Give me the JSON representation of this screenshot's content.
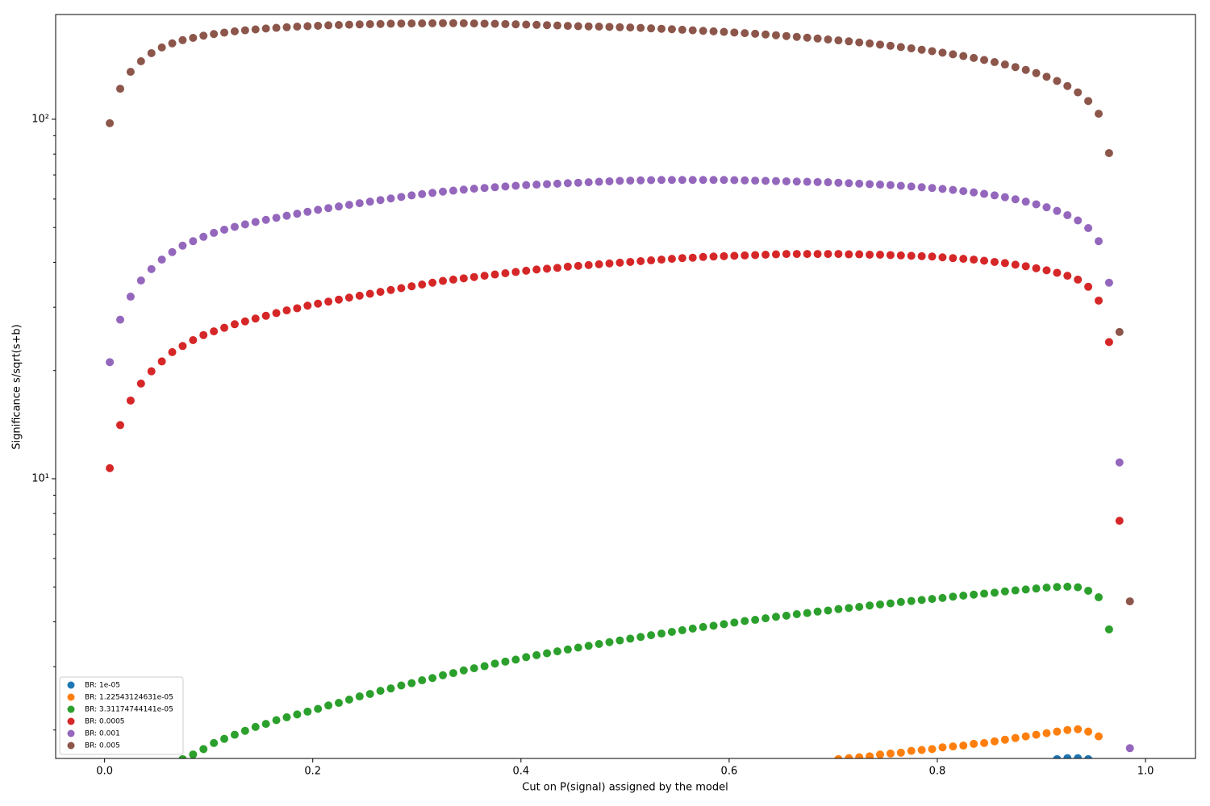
{
  "chart_data": {
    "type": "scatter",
    "xlabel": "Cut on P(signal) assigned by the model",
    "ylabel": "Significance s/sqrt(s+b)",
    "log_y": true,
    "legend_position": "lower left",
    "xlim": [
      -0.047,
      1.048
    ],
    "ylim": [
      1.667,
      195.6
    ],
    "xticks": [
      {
        "value": 0,
        "label": "0.0"
      },
      0.2,
      0.4,
      0.6,
      0.8,
      {
        "value": 1,
        "label": "1.0"
      }
    ],
    "yticks": [
      {
        "value": 10,
        "label": "10¹"
      },
      {
        "value": 100,
        "label": "10²"
      }
    ],
    "yminorticks": [
      2,
      3,
      4,
      5,
      6,
      7,
      8,
      9,
      20,
      30,
      40,
      50,
      60,
      70,
      80,
      90
    ],
    "x": [
      0.005,
      0.015,
      0.025,
      0.035,
      0.045,
      0.055,
      0.065,
      0.075,
      0.085,
      0.095,
      0.105,
      0.115,
      0.125,
      0.135,
      0.145,
      0.155,
      0.165,
      0.175,
      0.185,
      0.195,
      0.205,
      0.215,
      0.225,
      0.235,
      0.245,
      0.255,
      0.265,
      0.275,
      0.285,
      0.295,
      0.305,
      0.315,
      0.325,
      0.335,
      0.345,
      0.355,
      0.365,
      0.375,
      0.385,
      0.395,
      0.405,
      0.415,
      0.425,
      0.435,
      0.445,
      0.455,
      0.465,
      0.475,
      0.485,
      0.495,
      0.505,
      0.515,
      0.525,
      0.535,
      0.545,
      0.555,
      0.565,
      0.575,
      0.585,
      0.595,
      0.605,
      0.615,
      0.625,
      0.635,
      0.645,
      0.655,
      0.665,
      0.675,
      0.685,
      0.695,
      0.705,
      0.715,
      0.725,
      0.735,
      0.745,
      0.755,
      0.765,
      0.775,
      0.785,
      0.795,
      0.805,
      0.815,
      0.825,
      0.835,
      0.845,
      0.855,
      0.865,
      0.875,
      0.885,
      0.895,
      0.905,
      0.915,
      0.925,
      0.935,
      0.945,
      0.955,
      0.965,
      0.975,
      0.985
    ],
    "series": [
      {
        "name": "BR: 1e-05",
        "color": "#1f77b4",
        "values": [
          null,
          null,
          null,
          null,
          null,
          null,
          null,
          null,
          null,
          null,
          null,
          null,
          null,
          null,
          null,
          null,
          null,
          null,
          null,
          null,
          null,
          null,
          null,
          null,
          null,
          null,
          null,
          null,
          null,
          null,
          null,
          null,
          null,
          null,
          null,
          null,
          null,
          null,
          null,
          null,
          null,
          null,
          null,
          null,
          null,
          null,
          null,
          null,
          null,
          null,
          null,
          null,
          null,
          null,
          null,
          null,
          null,
          null,
          null,
          null,
          null,
          null,
          null,
          null,
          null,
          null,
          null,
          null,
          null,
          null,
          null,
          null,
          null,
          null,
          null,
          null,
          null,
          null,
          null,
          null,
          null,
          null,
          null,
          null,
          null,
          null,
          null,
          null,
          null,
          null,
          null,
          1.66,
          1.67,
          1.67,
          1.66,
          null,
          null,
          null,
          null
        ]
      },
      {
        "name": "BR: 1.22543124631e-05",
        "color": "#ff7f0e",
        "values": [
          null,
          null,
          null,
          null,
          null,
          null,
          null,
          null,
          null,
          null,
          null,
          null,
          null,
          null,
          null,
          null,
          null,
          null,
          null,
          null,
          null,
          null,
          null,
          null,
          null,
          null,
          null,
          null,
          null,
          null,
          null,
          null,
          null,
          null,
          null,
          null,
          null,
          null,
          null,
          null,
          null,
          null,
          null,
          null,
          null,
          null,
          null,
          null,
          null,
          null,
          null,
          null,
          null,
          null,
          null,
          null,
          null,
          null,
          null,
          null,
          null,
          null,
          null,
          null,
          null,
          null,
          null,
          null,
          null,
          null,
          1.66,
          1.67,
          1.68,
          1.69,
          1.71,
          1.72,
          1.73,
          1.75,
          1.76,
          1.77,
          1.79,
          1.8,
          1.81,
          1.83,
          1.84,
          1.86,
          1.88,
          1.9,
          1.92,
          1.94,
          1.96,
          1.98,
          2.0,
          2.01,
          1.98,
          1.92,
          null,
          null,
          null
        ]
      },
      {
        "name": "BR: 3.31174744141e-05",
        "color": "#2ca02c",
        "values": [
          null,
          null,
          null,
          null,
          null,
          null,
          null,
          1.66,
          1.71,
          1.77,
          1.84,
          1.89,
          1.94,
          1.99,
          2.04,
          2.08,
          2.13,
          2.17,
          2.21,
          2.25,
          2.29,
          2.34,
          2.38,
          2.43,
          2.48,
          2.52,
          2.57,
          2.61,
          2.66,
          2.7,
          2.75,
          2.79,
          2.84,
          2.88,
          2.93,
          2.97,
          3.01,
          3.06,
          3.1,
          3.14,
          3.19,
          3.23,
          3.27,
          3.31,
          3.35,
          3.39,
          3.43,
          3.47,
          3.51,
          3.55,
          3.59,
          3.63,
          3.67,
          3.71,
          3.75,
          3.79,
          3.83,
          3.87,
          3.9,
          3.94,
          3.98,
          4.02,
          4.05,
          4.09,
          4.13,
          4.16,
          4.2,
          4.23,
          4.27,
          4.3,
          4.34,
          4.37,
          4.4,
          4.44,
          4.47,
          4.5,
          4.54,
          4.57,
          4.6,
          4.63,
          4.66,
          4.7,
          4.73,
          4.76,
          4.79,
          4.82,
          4.86,
          4.89,
          4.92,
          4.95,
          4.98,
          5.0,
          5.01,
          4.99,
          4.88,
          4.68,
          3.81,
          null,
          null
        ]
      },
      {
        "name": "BR: 0.0005",
        "color": "#d62728",
        "values": [
          10.7,
          14.1,
          16.5,
          18.4,
          19.9,
          21.2,
          22.5,
          23.4,
          24.3,
          25.1,
          25.7,
          26.3,
          26.9,
          27.4,
          27.9,
          28.4,
          28.9,
          29.4,
          29.8,
          30.3,
          30.7,
          31.1,
          31.5,
          31.9,
          32.3,
          32.7,
          33.1,
          33.5,
          33.9,
          34.3,
          34.7,
          35.1,
          35.5,
          35.8,
          36.1,
          36.4,
          36.7,
          37,
          37.3,
          37.6,
          37.9,
          38.2,
          38.4,
          38.6,
          38.9,
          39.1,
          39.3,
          39.5,
          39.7,
          39.9,
          40.1,
          40.3,
          40.5,
          40.7,
          40.9,
          41.1,
          41.2,
          41.4,
          41.5,
          41.6,
          41.7,
          41.8,
          41.9,
          42,
          42.1,
          42.2,
          42.2,
          42.2,
          42.2,
          42.2,
          42.2,
          42.1,
          42.1,
          42,
          42,
          41.9,
          41.8,
          41.7,
          41.6,
          41.5,
          41.3,
          41.1,
          40.9,
          40.7,
          40.4,
          40.1,
          39.8,
          39.4,
          39,
          38.5,
          38,
          37.4,
          36.7,
          35.8,
          34.2,
          31.3,
          24,
          7.64,
          null
        ]
      },
      {
        "name": "BR: 0.001",
        "color": "#9467bd",
        "values": [
          21.1,
          27.7,
          32.1,
          35.6,
          38.3,
          40.7,
          42.7,
          44.5,
          45.8,
          47.1,
          48.3,
          49.3,
          50.2,
          51,
          51.8,
          52.5,
          53.2,
          53.9,
          54.6,
          55.3,
          56,
          56.6,
          57.2,
          57.8,
          58.4,
          59,
          59.6,
          60.2,
          60.8,
          61.4,
          61.9,
          62.4,
          62.9,
          63.3,
          63.7,
          64.1,
          64.4,
          64.7,
          65,
          65.3,
          65.6,
          65.8,
          66,
          66.2,
          66.4,
          66.6,
          66.8,
          67,
          67.2,
          67.4,
          67.5,
          67.6,
          67.7,
          67.8,
          67.8,
          67.8,
          67.8,
          67.8,
          67.8,
          67.8,
          67.7,
          67.6,
          67.5,
          67.4,
          67.3,
          67.2,
          67.1,
          67,
          66.9,
          66.8,
          66.6,
          66.4,
          66.2,
          66,
          65.8,
          65.6,
          65.3,
          65,
          64.7,
          64.4,
          64,
          63.6,
          63.1,
          62.6,
          62,
          61.4,
          60.7,
          59.9,
          59,
          58,
          56.9,
          55.6,
          54.1,
          52.3,
          49.8,
          45.8,
          35.1,
          11.1,
          1.78
        ]
      },
      {
        "name": "BR: 0.005",
        "color": "#8c564b",
        "values": [
          97.5,
          121.6,
          135.5,
          145,
          152.7,
          158.4,
          162.6,
          166,
          168.4,
          170.8,
          172.6,
          174.2,
          175.6,
          176.8,
          177.8,
          178.8,
          179.6,
          180.3,
          181,
          181.5,
          182,
          182.5,
          182.9,
          183.3,
          183.6,
          183.9,
          184.1,
          184.4,
          184.6,
          184.7,
          184.8,
          184.9,
          185,
          185,
          184.9,
          184.7,
          184.5,
          184.3,
          184,
          183.7,
          183.4,
          183.1,
          182.7,
          182.3,
          181.9,
          181.5,
          181.3,
          181,
          180.7,
          180.3,
          180,
          179.5,
          179,
          178.5,
          178,
          177.4,
          176.8,
          176.2,
          175.6,
          175,
          174.3,
          173.6,
          172.9,
          172.1,
          171.3,
          170.4,
          169.5,
          168.6,
          167.7,
          166.7,
          165.7,
          164.7,
          163.6,
          162.5,
          161.3,
          160.1,
          158.8,
          157.5,
          156.1,
          154.7,
          153.2,
          151.6,
          149.9,
          148.1,
          146.2,
          144.2,
          142,
          139.7,
          137.2,
          134.4,
          131.3,
          127.8,
          123.7,
          118.8,
          112.4,
          103.6,
          80.5,
          25.6,
          4.56
        ]
      }
    ]
  }
}
